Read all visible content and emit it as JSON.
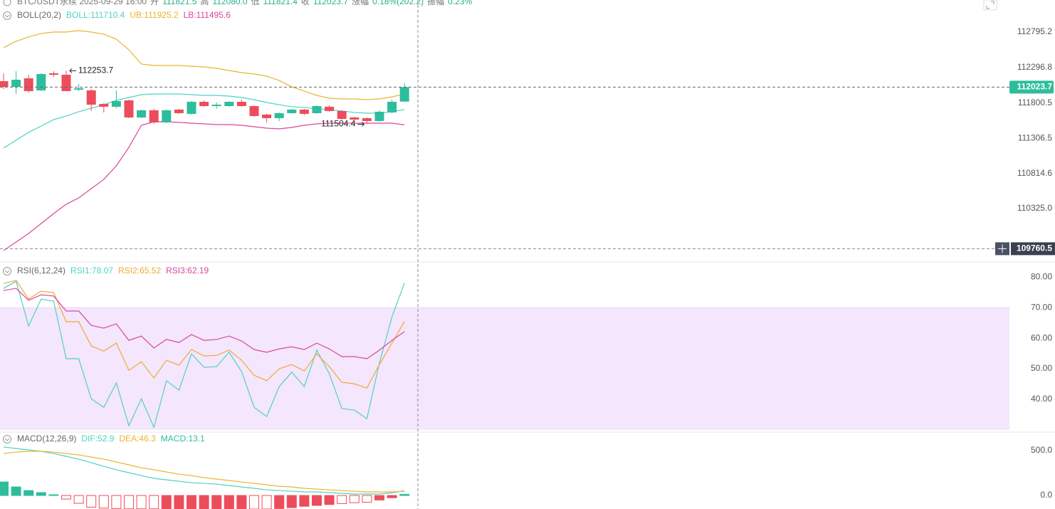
{
  "header": [
    {
      "text": "BTC/USDT永续 2025-09-29 16:00",
      "color": "#777777"
    },
    {
      "text": "开",
      "color": "#777777"
    },
    {
      "text": "111821.5",
      "color": "#26b08a"
    },
    {
      "text": "高",
      "color": "#777777"
    },
    {
      "text": "112080.0",
      "color": "#26b08a"
    },
    {
      "text": "低",
      "color": "#777777"
    },
    {
      "text": "111821.4",
      "color": "#26b08a"
    },
    {
      "text": "收",
      "color": "#777777"
    },
    {
      "text": "112023.7",
      "color": "#26b08a"
    },
    {
      "text": "涨幅",
      "color": "#777777"
    },
    {
      "text": "0.18%(202.2)",
      "color": "#26b08a"
    },
    {
      "text": "振幅",
      "color": "#777777"
    },
    {
      "text": "0.23%",
      "color": "#26b08a"
    }
  ],
  "chart_data": [
    {
      "type": "candlestick",
      "indicator": "BOLL(20,2)",
      "open": [
        112107,
        112028,
        112147,
        111978,
        112217,
        112197,
        111988,
        111978,
        111788,
        111749,
        111838,
        111599,
        111699,
        111529,
        111709,
        111649,
        111818,
        111758,
        111758,
        111818,
        111758,
        111639,
        111589,
        111659,
        111709,
        111659,
        111749,
        111689,
        111599,
        111589,
        111549,
        111669,
        111821.5
      ],
      "high": [
        112217,
        112247,
        112197,
        112217,
        112247,
        112253.7,
        112068,
        111998,
        111798,
        111978,
        111848,
        111709,
        111719,
        111709,
        111719,
        111828,
        111838,
        111808,
        111828,
        111848,
        111768,
        111649,
        111669,
        111719,
        111719,
        111768,
        111768,
        111699,
        111609,
        111599,
        111699,
        111848,
        112080.0
      ],
      "low": [
        111998,
        111928,
        111948,
        111968,
        112167,
        111968,
        111968,
        111689,
        111669,
        111729,
        111589,
        111589,
        111509,
        111519,
        111649,
        111639,
        111749,
        111719,
        111749,
        111749,
        111609,
        111529,
        111549,
        111649,
        111629,
        111649,
        111679,
        111569,
        111539,
        111504.4,
        111539,
        111659,
        111821.4
      ],
      "close": [
        112028,
        112127,
        111968,
        112207,
        112197,
        111968,
        112008,
        111778,
        111749,
        111828,
        111599,
        111699,
        111529,
        111699,
        111659,
        111818,
        111758,
        111778,
        111818,
        111758,
        111619,
        111589,
        111659,
        111709,
        111649,
        111758,
        111689,
        111579,
        111569,
        111549,
        111679,
        111818,
        112023.7
      ],
      "up_color": "#2ebd9c",
      "down_color": "#ec4d5c",
      "series": [
        {
          "name": "BOLL:111710.4",
          "color": "#4fd1c5",
          "values": [
            111170,
            111280,
            111390,
            111479,
            111569,
            111619,
            111679,
            111729,
            111778,
            111838,
            111878,
            111918,
            111928,
            111928,
            111928,
            111918,
            111908,
            111908,
            111898,
            111878,
            111848,
            111808,
            111778,
            111749,
            111739,
            111719,
            111709,
            111689,
            111669,
            111659,
            111659,
            111679,
            111710.4
          ]
        },
        {
          "name": "UB:111925.2",
          "color": "#e9b52d",
          "values": [
            112576,
            112666,
            112726,
            112775,
            112795,
            112795,
            112815,
            112795,
            112765,
            112696,
            112546,
            112347,
            112327,
            112327,
            112327,
            112317,
            112307,
            112287,
            112257,
            112227,
            112207,
            112177,
            112117,
            112028,
            111968,
            111908,
            111868,
            111858,
            111858,
            111848,
            111858,
            111888,
            111925.2
          ]
        },
        {
          "name": "LB:111495.6",
          "color": "#d9479b",
          "values": [
            109735,
            109854,
            109974,
            110113,
            110253,
            110383,
            110472,
            110602,
            110732,
            110921,
            111180,
            111489,
            111539,
            111539,
            111529,
            111519,
            111509,
            111499,
            111499,
            111489,
            111469,
            111449,
            111439,
            111459,
            111489,
            111509,
            111519,
            111519,
            111519,
            111519,
            111519,
            111519,
            111495.6
          ]
        }
      ],
      "ylim": [
        109704.5,
        113243.9
      ],
      "yticks": [
        112795.2,
        112296.8,
        111800.5,
        111306.5,
        110814.6,
        {
          "value": 110325,
          "label": "110325.0"
        }
      ],
      "crosshair_y": 109760.5
    },
    {
      "type": "line",
      "indicator": "RSI(6,12,24)",
      "series": [
        {
          "name": "RSI1:78.07",
          "color": "#4fd1c5",
          "values": [
            76.3,
            78.6,
            64.0,
            72.8,
            72.1,
            53.3,
            53.3,
            40.2,
            37.4,
            45.4,
            31.4,
            40.2,
            30.9,
            46.1,
            43.0,
            54.9,
            50.5,
            50.7,
            55.4,
            49.1,
            37.4,
            34.4,
            44.2,
            48.9,
            44.2,
            56.1,
            48.4,
            37.0,
            36.5,
            33.7,
            51.9,
            67.0,
            78.07
          ]
        },
        {
          "name": "RSI2:65.52",
          "color": "#f0a93a",
          "values": [
            77.9,
            78.9,
            72.8,
            75.4,
            74.9,
            65.4,
            65.4,
            57.5,
            55.8,
            58.4,
            49.5,
            52.3,
            47.0,
            52.8,
            51.2,
            56.3,
            54.2,
            54.4,
            56.1,
            52.8,
            47.9,
            46.1,
            50.0,
            51.4,
            49.3,
            54.9,
            50.7,
            45.6,
            45.1,
            43.7,
            51.4,
            58.4,
            65.52
          ]
        },
        {
          "name": "RSI3:62.19",
          "color": "#d9479b",
          "values": [
            75.6,
            76.3,
            72.4,
            74.2,
            73.8,
            68.9,
            68.9,
            64.2,
            63.3,
            64.7,
            59.3,
            60.7,
            56.8,
            59.6,
            58.6,
            61.2,
            59.3,
            59.6,
            60.7,
            59.1,
            56.3,
            55.4,
            56.5,
            57.2,
            56.3,
            58.4,
            56.5,
            54.0,
            54.0,
            53.3,
            56.1,
            59.3,
            62.19
          ]
        }
      ],
      "band": [
        30,
        70
      ],
      "band_color": "#f4e6fc",
      "ylim": [
        30,
        84
      ],
      "yticks": [
        {
          "value": 80,
          "label": "80.00"
        },
        {
          "value": 70,
          "label": "70.00"
        },
        {
          "value": 60,
          "label": "60.00"
        },
        {
          "value": 50,
          "label": "50.00"
        },
        {
          "value": 40,
          "label": "40.00"
        }
      ]
    },
    {
      "type": "macd",
      "indicator": "MACD(12,26,9)",
      "series": [
        {
          "name": "DIF:52.9",
          "color": "#4fd1c5",
          "values": [
            538,
            522,
            506,
            490,
            466,
            435,
            403,
            364,
            324,
            285,
            253,
            221,
            190,
            174,
            158,
            142,
            134,
            126,
            111,
            95,
            79,
            63,
            55,
            47,
            40,
            40,
            32,
            24,
            16,
            16,
            16,
            30,
            52.9
          ]
        },
        {
          "name": "DEA:46.3",
          "color": "#e9b52d",
          "values": [
            466,
            482,
            490,
            490,
            482,
            466,
            451,
            427,
            403,
            372,
            340,
            308,
            285,
            261,
            237,
            221,
            198,
            182,
            166,
            150,
            134,
            119,
            103,
            95,
            79,
            71,
            63,
            55,
            47,
            40,
            40,
            40,
            46.3
          ]
        }
      ],
      "histogram": {
        "name": "MACD:13.1",
        "color": "#2ebd9c",
        "values": [
          150,
          95,
          55,
          32,
          8,
          -40,
          -87,
          -130,
          -140,
          -145,
          -148,
          -148,
          -148,
          -150,
          -150,
          -150,
          -150,
          -150,
          -150,
          -150,
          -150,
          -150,
          -145,
          -135,
          -120,
          -110,
          -100,
          -90,
          -80,
          -75,
          -50,
          -25,
          13.1
        ],
        "colors": [
          "#2ebd9c",
          "#2ebd9c",
          "#2ebd9c",
          "#2ebd9c",
          "#2ebd9c",
          "#ec4d5c",
          "#ec4d5c",
          "#ec4d5c",
          "#ec4d5c",
          "#ec4d5c",
          "#ec4d5c",
          "#ec4d5c",
          "#ec4d5c",
          "#ec4d5c",
          "#ec4d5c",
          "#ec4d5c",
          "#ec4d5c",
          "#ec4d5c",
          "#ec4d5c",
          "#ec4d5c",
          "#ec4d5c",
          "#ec4d5c",
          "#ec4d5c",
          "#ec4d5c",
          "#ec4d5c",
          "#ec4d5c",
          "#ec4d5c",
          "#ec4d5c",
          "#ec4d5c",
          "#ec4d5c",
          "#ec4d5c",
          "#ec4d5c",
          "#2ebd9c"
        ],
        "fills": [
          "#2ebd9c",
          "#2ebd9c",
          "#2ebd9c",
          "#2ebd9c",
          "#2ebd9c",
          "#ffffff",
          "#ffffff",
          "#ffffff",
          "#ffffff",
          "#ffffff",
          "#ffffff",
          "#ffffff",
          "#ffffff",
          "#ec4d5c",
          "#ec4d5c",
          "#ec4d5c",
          "#ec4d5c",
          "#ec4d5c",
          "#ec4d5c",
          "#ec4d5c",
          "#ffffff",
          "#ffffff",
          "#ec4d5c",
          "#ec4d5c",
          "#ec4d5c",
          "#ec4d5c",
          "#ec4d5c",
          "#ffffff",
          "#ffffff",
          "#ffffff",
          "#ec4d5c",
          "#ec4d5c",
          "#2ebd9c"
        ]
      },
      "ylim": [
        -150,
        680
      ],
      "yticks": [
        {
          "value": 500,
          "label": "500.0"
        },
        {
          "value": 0,
          "label": "0.0"
        }
      ]
    }
  ]
}
